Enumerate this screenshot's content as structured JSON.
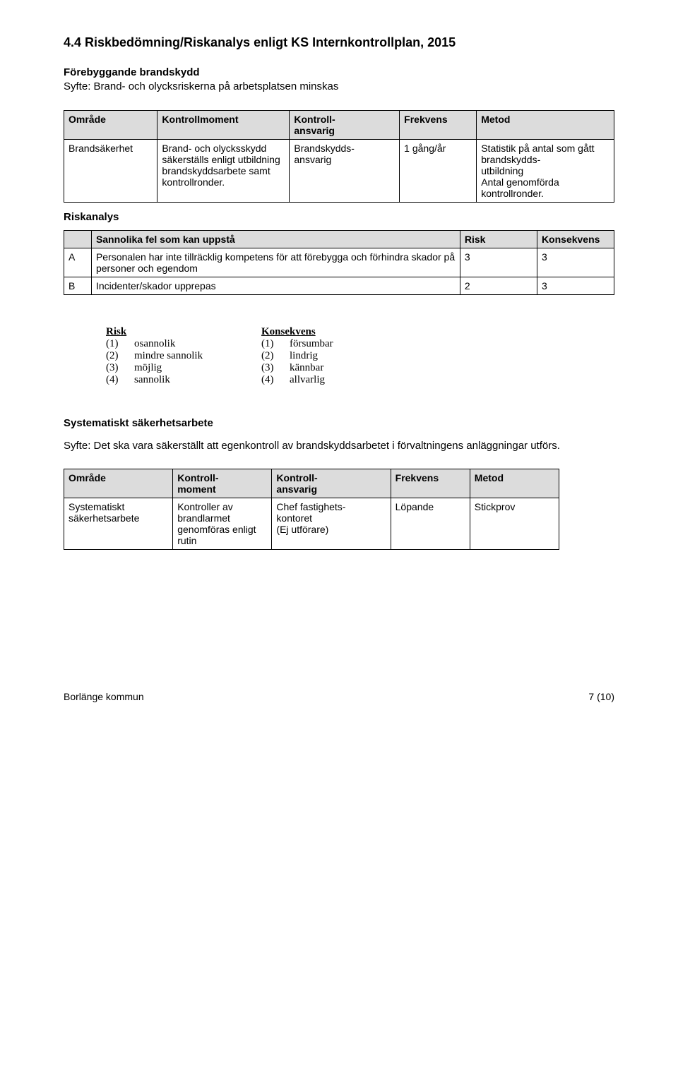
{
  "heading": "4.4 Riskbedömning/Riskanalys enligt KS Internkontrollplan, 2015",
  "subheading1": "Förebyggande brandskydd",
  "syfte1_label": "Syfte",
  "syfte1_text": ": Brand- och olycksriskerna på arbetsplatsen minskas",
  "table1": {
    "headers": [
      "Område",
      "Kontrollmoment",
      "Kontroll-\nansvarig",
      "Frekvens",
      "Metod"
    ],
    "row": [
      "Brandsäkerhet",
      "Brand- och olycksskydd säkerställs enligt utbildning brandskyddsarbete samt kontrollronder.",
      "Brandskydds-\nansvarig",
      "1 gång/år",
      "Statistik på antal som gått brandskydds-\nutbildning\nAntal genomförda kontrollronder."
    ]
  },
  "riskanalys_label": "Riskanalys",
  "table2": {
    "header_blank": "",
    "header_fel": "Sannolika fel som kan uppstå",
    "header_risk": "Risk",
    "header_kons": "Konsekvens",
    "rows": [
      {
        "id": "A",
        "text": "Personalen har inte tillräcklig kompetens för att förebygga och förhindra skador på personer och egendom",
        "risk": "3",
        "kons": "3"
      },
      {
        "id": "B",
        "text": "Incidenter/skador upprepas",
        "risk": "2",
        "kons": "3"
      }
    ]
  },
  "legend": {
    "risk_title": "Risk",
    "risk": [
      {
        "n": "(1)",
        "t": "osannolik"
      },
      {
        "n": "(2)",
        "t": "mindre sannolik"
      },
      {
        "n": "(3)",
        "t": "möjlig"
      },
      {
        "n": "(4)",
        "t": "sannolik"
      }
    ],
    "kons_title": "Konsekvens",
    "kons": [
      {
        "n": "(1)",
        "t": "försumbar"
      },
      {
        "n": "(2)",
        "t": "lindrig"
      },
      {
        "n": "(3)",
        "t": "kännbar"
      },
      {
        "n": "(4)",
        "t": "allvarlig"
      }
    ]
  },
  "systematic_heading": "Systematiskt säkerhetsarbete",
  "syfte2_label": "Syfte",
  "syfte2_text": ": Det ska vara säkerställt att egenkontroll av brandskyddsarbetet i förvaltningens anläggningar utförs.",
  "table3": {
    "headers": [
      "Område",
      "Kontroll-\nmoment",
      "Kontroll-\nansvarig",
      "Frekvens",
      "Metod"
    ],
    "row": [
      "Systematiskt säkerhetsarbete",
      "Kontroller av brandlarmet genomföras enligt rutin",
      "Chef fastighets-\nkontoret\n(Ej utförare)",
      "Löpande",
      "Stickprov"
    ]
  },
  "footer_left": "Borlänge kommun",
  "footer_right": "7 (10)"
}
